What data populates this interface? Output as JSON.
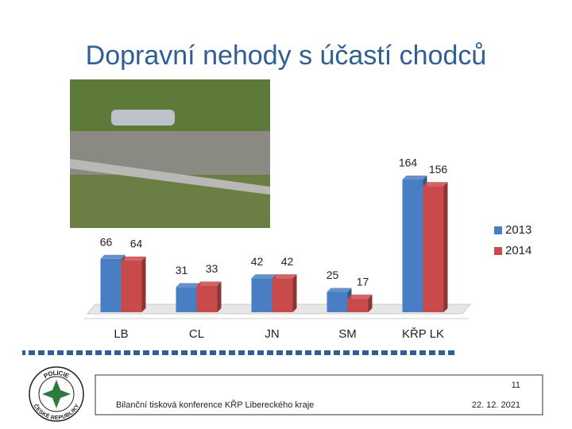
{
  "chart_data": {
    "type": "bar",
    "title": "Dopravní nehody s účastí chodců",
    "categories": [
      "LB",
      "CL",
      "JN",
      "SM",
      "KŘP LK"
    ],
    "series": [
      {
        "name": "2013",
        "color": "#4a7ec4",
        "values": [
          66,
          31,
          42,
          25,
          164
        ]
      },
      {
        "name": "2014",
        "color": "#c94a4a",
        "values": [
          64,
          33,
          42,
          17,
          156
        ]
      }
    ],
    "legend": "right"
  },
  "footer": {
    "page": "11",
    "text": "Bilanční tisková konference KŘP Libereckého kraje",
    "date": "22. 12. 2021"
  },
  "logo": {
    "top": "POLICIE",
    "bottom": "ČESKÉ REPUBLIKY"
  }
}
